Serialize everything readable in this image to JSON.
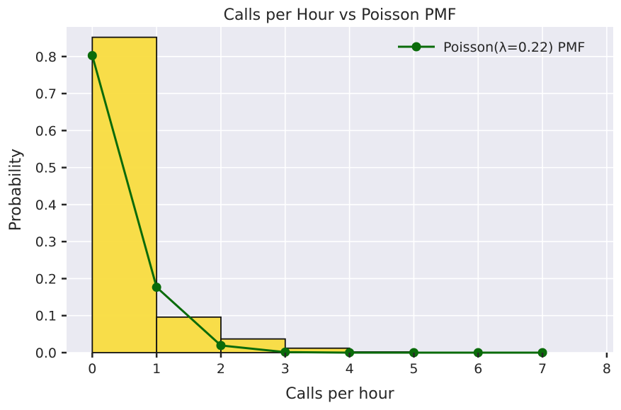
{
  "chart_data": {
    "type": "bar",
    "title": "Calls per Hour vs Poisson PMF",
    "xlabel": "Calls per hour",
    "ylabel": "Probability",
    "xlim": [
      -0.4,
      8.1
    ],
    "ylim": [
      0,
      0.88
    ],
    "xticks": [
      0,
      1,
      2,
      3,
      4,
      5,
      6,
      7,
      8
    ],
    "yticks": [
      0.0,
      0.1,
      0.2,
      0.3,
      0.4,
      0.5,
      0.6,
      0.7,
      0.8
    ],
    "ytick_labels": [
      "0.0",
      "0.1",
      "0.2",
      "0.3",
      "0.4",
      "0.5",
      "0.6",
      "0.7",
      "0.8"
    ],
    "xtick_labels": [
      "0",
      "1",
      "2",
      "3",
      "4",
      "5",
      "6",
      "7",
      "8"
    ],
    "grid": true,
    "legend_position": "upper right",
    "histogram": {
      "bin_edges": [
        0,
        1,
        2,
        3,
        4,
        5,
        6,
        7,
        8
      ],
      "values": [
        0.852,
        0.096,
        0.037,
        0.012,
        0.002,
        0.001,
        0.0,
        0.0
      ],
      "color": "#f9dc3f",
      "edgecolor": "#111111"
    },
    "series": [
      {
        "name": "Poisson(λ=0.22) PMF",
        "x": [
          0,
          1,
          2,
          3,
          4,
          5,
          6,
          7
        ],
        "values": [
          0.8025,
          0.1766,
          0.0194,
          0.0014,
          0.0001,
          0.0,
          0.0,
          0.0
        ],
        "color": "#0a6b0a"
      }
    ],
    "background_color": "#eaeaf2"
  }
}
